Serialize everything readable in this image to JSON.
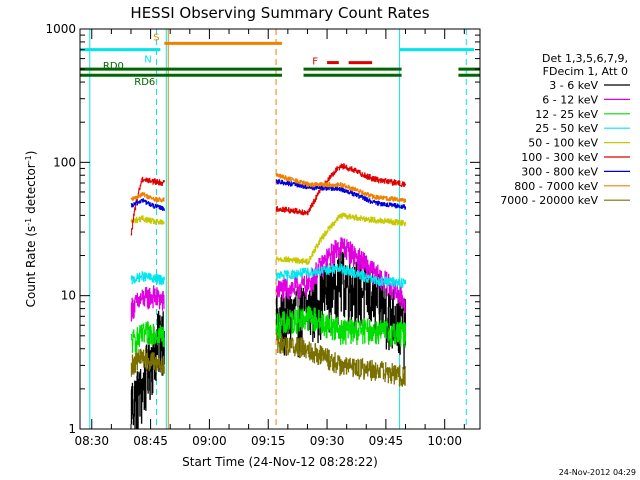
{
  "chart_data": {
    "type": "line",
    "title": "HESSI Observing Summary Count Rates",
    "xlabel": "Start Time (24-Nov-12 08:28:22)",
    "ylabel_main": "Count Rate (s",
    "ylabel_sup1": "-1",
    "ylabel_mid": " detector",
    "ylabel_sup2": "-1",
    "ylabel_end": ")",
    "y_scale": "log",
    "ylim": [
      1,
      1000
    ],
    "xlim_minutes": [
      -3,
      99
    ],
    "y_ticks": [
      {
        "value": 1,
        "label": "1"
      },
      {
        "value": 10,
        "label": "10"
      },
      {
        "value": 100,
        "label": "100"
      },
      {
        "value": 1000,
        "label": "1000"
      }
    ],
    "x_ticks": [
      {
        "value": 0,
        "label": "08:30"
      },
      {
        "value": 15,
        "label": "08:45"
      },
      {
        "value": 30,
        "label": "09:00"
      },
      {
        "value": 45,
        "label": "09:15"
      },
      {
        "value": 60,
        "label": "09:30"
      },
      {
        "value": 75,
        "label": "09:45"
      },
      {
        "value": 90,
        "label": "10:00"
      }
    ],
    "legend": {
      "header1": "Det 1,3,5,6,7,9,",
      "header2": "FDecim 1, Att 0",
      "placement": "right"
    },
    "series": [
      {
        "name": "3 - 6 keV",
        "color": "#000000",
        "seg1": [
          1.6,
          2.0,
          4.0,
          6.0
        ],
        "seg2": [
          6.5,
          8.0,
          14.0,
          10.0,
          6.0
        ],
        "noise": 0.55
      },
      {
        "name": "6 - 12 keV",
        "color": "#e000e0",
        "seg1": [
          8.0,
          9.5,
          10.0,
          9.0
        ],
        "seg2": [
          11.0,
          12.0,
          24.0,
          15.0,
          9.0
        ],
        "noise": 0.2
      },
      {
        "name": "12 - 25 keV",
        "color": "#00dd00",
        "seg1": [
          4.5,
          5.0,
          5.5,
          5.0
        ],
        "seg2": [
          6.0,
          7.0,
          5.5,
          5.5,
          5.2
        ],
        "noise": 0.22
      },
      {
        "name": "25 - 50 keV",
        "color": "#00e5ee",
        "seg1": [
          13.0,
          14.0,
          13.5,
          13.0
        ],
        "seg2": [
          14.0,
          15.0,
          16.0,
          13.0,
          12.5
        ],
        "noise": 0.08
      },
      {
        "name": "50 - 100 keV",
        "color": "#c8c800",
        "seg1": [
          36.0,
          38.0,
          36.0,
          35.0
        ],
        "seg2": [
          19.0,
          18.0,
          40.0,
          37.0,
          35.0
        ],
        "noise": 0.05
      },
      {
        "name": "100 - 300 keV",
        "color": "#e00000",
        "seg1": [
          28.0,
          75.0,
          72.0,
          70.0
        ],
        "seg2": [
          45.0,
          42.0,
          95.0,
          75.0,
          68.0
        ],
        "noise": 0.05
      },
      {
        "name": "300 - 800 keV",
        "color": "#0000dd",
        "seg1": [
          47.0,
          52.0,
          47.0,
          45.0
        ],
        "seg2": [
          72.0,
          65.0,
          63.0,
          50.0,
          46.0
        ],
        "noise": 0.04
      },
      {
        "name": "800 - 7000 keV",
        "color": "#f08000",
        "seg1": [
          52.0,
          58.0,
          53.0,
          52.0
        ],
        "seg2": [
          80.0,
          68.0,
          68.0,
          55.0,
          52.0
        ],
        "noise": 0.04
      },
      {
        "name": "7000 - 20000 keV",
        "color": "#7a7000",
        "seg1": [
          3.0,
          3.5,
          3.2,
          3.0
        ],
        "seg2": [
          4.5,
          4.0,
          3.0,
          2.8,
          2.5
        ],
        "noise": 0.18
      }
    ],
    "data_segments": [
      {
        "t_start": 10.0,
        "t_end": 18.5
      },
      {
        "t_start": 47.0,
        "t_end": 80.0
      }
    ],
    "flags": [
      {
        "label": "N",
        "color": "#00e5ee",
        "segments": [
          [
            -3,
            17.5
          ],
          [
            78.5,
            97.5
          ]
        ],
        "level": 700,
        "label_at": 15.3
      },
      {
        "label": "S",
        "color": "#f08000",
        "segments": [
          [
            18.5,
            48.5
          ]
        ],
        "level": 780,
        "label_at": 17.3
      },
      {
        "label": "F",
        "color": "#e00000",
        "segments": [
          [
            60.0,
            63.0
          ],
          [
            65.5,
            71.5
          ]
        ],
        "level": 560,
        "label_at": 57.7
      },
      {
        "label": "RD0",
        "color": "#006600",
        "segments": [
          [
            -3,
            48.5
          ],
          [
            54.0,
            79.0
          ],
          [
            93.5,
            99
          ]
        ],
        "level": 500,
        "label_at": 8.2
      },
      {
        "label": "RD6",
        "color": "#006600",
        "segments": [
          [
            -3,
            48.5
          ],
          [
            54.0,
            79.0
          ],
          [
            93.5,
            99
          ]
        ],
        "level": 450,
        "label_at": 16.2
      }
    ],
    "vertical_markers": [
      {
        "t": -0.5,
        "color": "#00e5ee",
        "style": "solid"
      },
      {
        "t": 16.5,
        "color": "#00e5ee",
        "style": "dashed"
      },
      {
        "t": 19.0,
        "color": "#00e5ee",
        "style": "solid"
      },
      {
        "t": 19.5,
        "color": "#f08000",
        "style": "solid"
      },
      {
        "t": 47.0,
        "color": "#f08000",
        "style": "dashed"
      },
      {
        "t": 78.5,
        "color": "#00e5ee",
        "style": "solid"
      },
      {
        "t": 95.5,
        "color": "#00e5ee",
        "style": "dashed"
      }
    ],
    "footer_timestamp": "24-Nov-2012 04:29",
    "grid": false
  }
}
